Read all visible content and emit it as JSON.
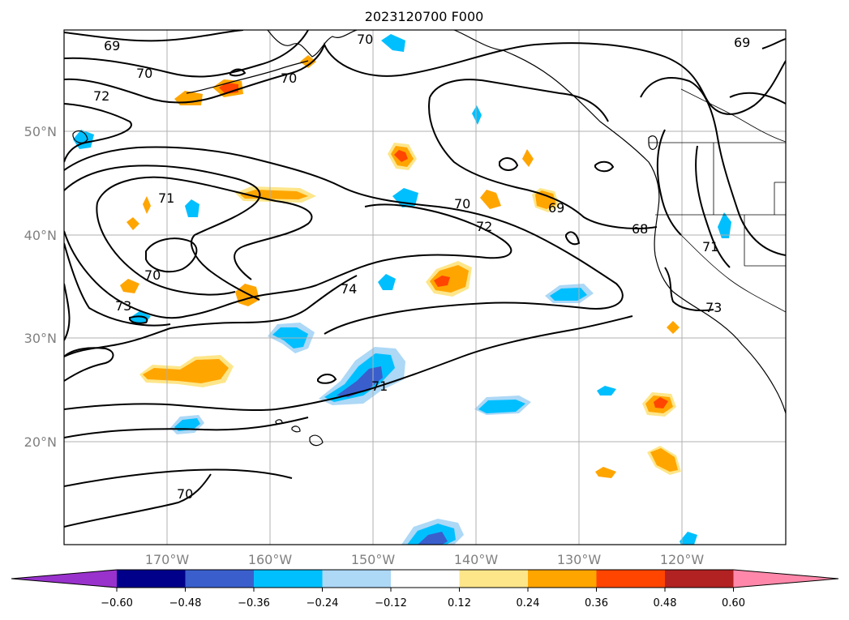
{
  "title": "2023120700 F000",
  "map": {
    "lat_labels": [
      "50°N",
      "40°N",
      "30°N",
      "20°N"
    ],
    "lon_labels": [
      "170°W",
      "160°W",
      "150°W",
      "140°W",
      "130°W",
      "120°W"
    ],
    "contour_labels": [
      "69",
      "70",
      "72",
      "71",
      "70",
      "73",
      "74",
      "71",
      "70",
      "70",
      "69",
      "72",
      "69",
      "68",
      "71",
      "70",
      "70",
      "73"
    ]
  },
  "colorbar": {
    "ticks": [
      "−0.60",
      "−0.48",
      "−0.36",
      "−0.24",
      "−0.12",
      "0.12",
      "0.24",
      "0.36",
      "0.48",
      "0.60"
    ],
    "colors": [
      "#9932cc",
      "#00008b",
      "#3a5fcd",
      "#00bfff",
      "#add8f6",
      "#ffffff",
      "#fde68a",
      "#ffa500",
      "#ff4500",
      "#b22222",
      "#ff88aa"
    ]
  }
}
